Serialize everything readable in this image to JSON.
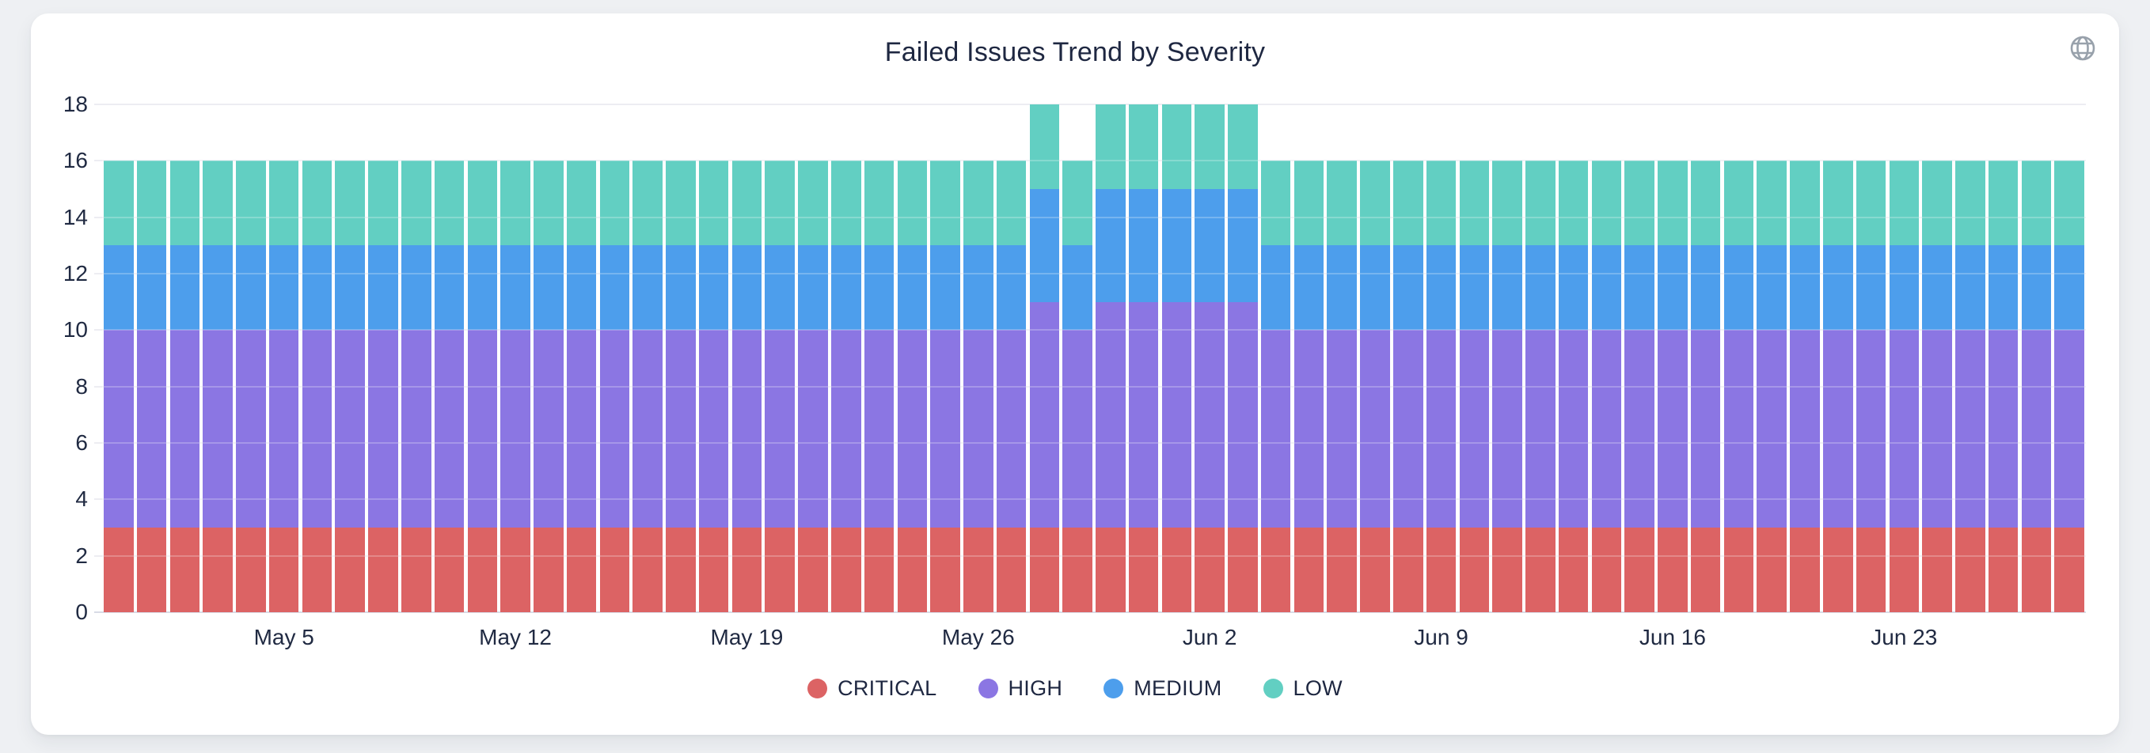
{
  "header": {
    "title": "Failed Issues Trend by Severity",
    "menu_icon": "globe-icon"
  },
  "colors": {
    "critical": "#dc6364",
    "high": "#8b76e3",
    "medium": "#4d9eec",
    "low": "#62cfc2",
    "text": "#1e2741",
    "grid": "#ededf2",
    "axis_line": "#d8dbe6",
    "icon_gray": "#98a1ab",
    "card_bg": "#ffffff",
    "page_bg": "#eef0f3"
  },
  "chart_data": {
    "type": "bar",
    "stacked": true,
    "title": "Failed Issues Trend by Severity",
    "xlabel": "",
    "ylabel": "",
    "ylim": [
      0,
      18
    ],
    "grid": true,
    "legend_position": "bottom",
    "y_ticks": [
      0,
      2,
      4,
      6,
      8,
      10,
      12,
      14,
      16,
      18
    ],
    "categories": [
      "Apr 30",
      "May 1",
      "May 2",
      "May 3",
      "May 4",
      "May 5",
      "May 6",
      "May 7",
      "May 8",
      "May 9",
      "May 10",
      "May 11",
      "May 12",
      "May 13",
      "May 14",
      "May 15",
      "May 16",
      "May 17",
      "May 18",
      "May 19",
      "May 20",
      "May 21",
      "May 22",
      "May 23",
      "May 24",
      "May 25",
      "May 26",
      "May 27",
      "May 28",
      "May 29",
      "May 30",
      "May 31",
      "Jun 1",
      "Jun 2",
      "Jun 3",
      "Jun 4",
      "Jun 5",
      "Jun 6",
      "Jun 7",
      "Jun 8",
      "Jun 9",
      "Jun 10",
      "Jun 11",
      "Jun 12",
      "Jun 13",
      "Jun 14",
      "Jun 15",
      "Jun 16",
      "Jun 17",
      "Jun 18",
      "Jun 19",
      "Jun 20",
      "Jun 21",
      "Jun 22",
      "Jun 23",
      "Jun 24",
      "Jun 25",
      "Jun 26",
      "Jun 27",
      "Jun 28"
    ],
    "x_ticks": [
      {
        "label": "May 5",
        "index": 5
      },
      {
        "label": "May 12",
        "index": 12
      },
      {
        "label": "May 19",
        "index": 19
      },
      {
        "label": "May 26",
        "index": 26
      },
      {
        "label": "Jun 2",
        "index": 33
      },
      {
        "label": "Jun 9",
        "index": 40
      },
      {
        "label": "Jun 16",
        "index": 47
      },
      {
        "label": "Jun 23",
        "index": 54
      }
    ],
    "series": [
      {
        "name": "CRITICAL",
        "color": "#dc6364",
        "values": [
          3,
          3,
          3,
          3,
          3,
          3,
          3,
          3,
          3,
          3,
          3,
          3,
          3,
          3,
          3,
          3,
          3,
          3,
          3,
          3,
          3,
          3,
          3,
          3,
          3,
          3,
          3,
          3,
          3,
          3,
          3,
          3,
          3,
          3,
          3,
          3,
          3,
          3,
          3,
          3,
          3,
          3,
          3,
          3,
          3,
          3,
          3,
          3,
          3,
          3,
          3,
          3,
          3,
          3,
          3,
          3,
          3,
          3,
          3,
          3
        ]
      },
      {
        "name": "HIGH",
        "color": "#8b76e3",
        "values": [
          7,
          7,
          7,
          7,
          7,
          7,
          7,
          7,
          7,
          7,
          7,
          7,
          7,
          7,
          7,
          7,
          7,
          7,
          7,
          7,
          7,
          7,
          7,
          7,
          7,
          7,
          7,
          7,
          8,
          7,
          8,
          8,
          8,
          8,
          8,
          7,
          7,
          7,
          7,
          7,
          7,
          7,
          7,
          7,
          7,
          7,
          7,
          7,
          7,
          7,
          7,
          7,
          7,
          7,
          7,
          7,
          7,
          7,
          7,
          7
        ]
      },
      {
        "name": "MEDIUM",
        "color": "#4d9eec",
        "values": [
          3,
          3,
          3,
          3,
          3,
          3,
          3,
          3,
          3,
          3,
          3,
          3,
          3,
          3,
          3,
          3,
          3,
          3,
          3,
          3,
          3,
          3,
          3,
          3,
          3,
          3,
          3,
          3,
          4,
          3,
          4,
          4,
          4,
          4,
          4,
          3,
          3,
          3,
          3,
          3,
          3,
          3,
          3,
          3,
          3,
          3,
          3,
          3,
          3,
          3,
          3,
          3,
          3,
          3,
          3,
          3,
          3,
          3,
          3,
          3
        ]
      },
      {
        "name": "LOW",
        "color": "#62cfc2",
        "values": [
          3,
          3,
          3,
          3,
          3,
          3,
          3,
          3,
          3,
          3,
          3,
          3,
          3,
          3,
          3,
          3,
          3,
          3,
          3,
          3,
          3,
          3,
          3,
          3,
          3,
          3,
          3,
          3,
          3,
          3,
          3,
          3,
          3,
          3,
          3,
          3,
          3,
          3,
          3,
          3,
          3,
          3,
          3,
          3,
          3,
          3,
          3,
          3,
          3,
          3,
          3,
          3,
          3,
          3,
          3,
          3,
          3,
          3,
          3,
          3
        ]
      }
    ]
  }
}
